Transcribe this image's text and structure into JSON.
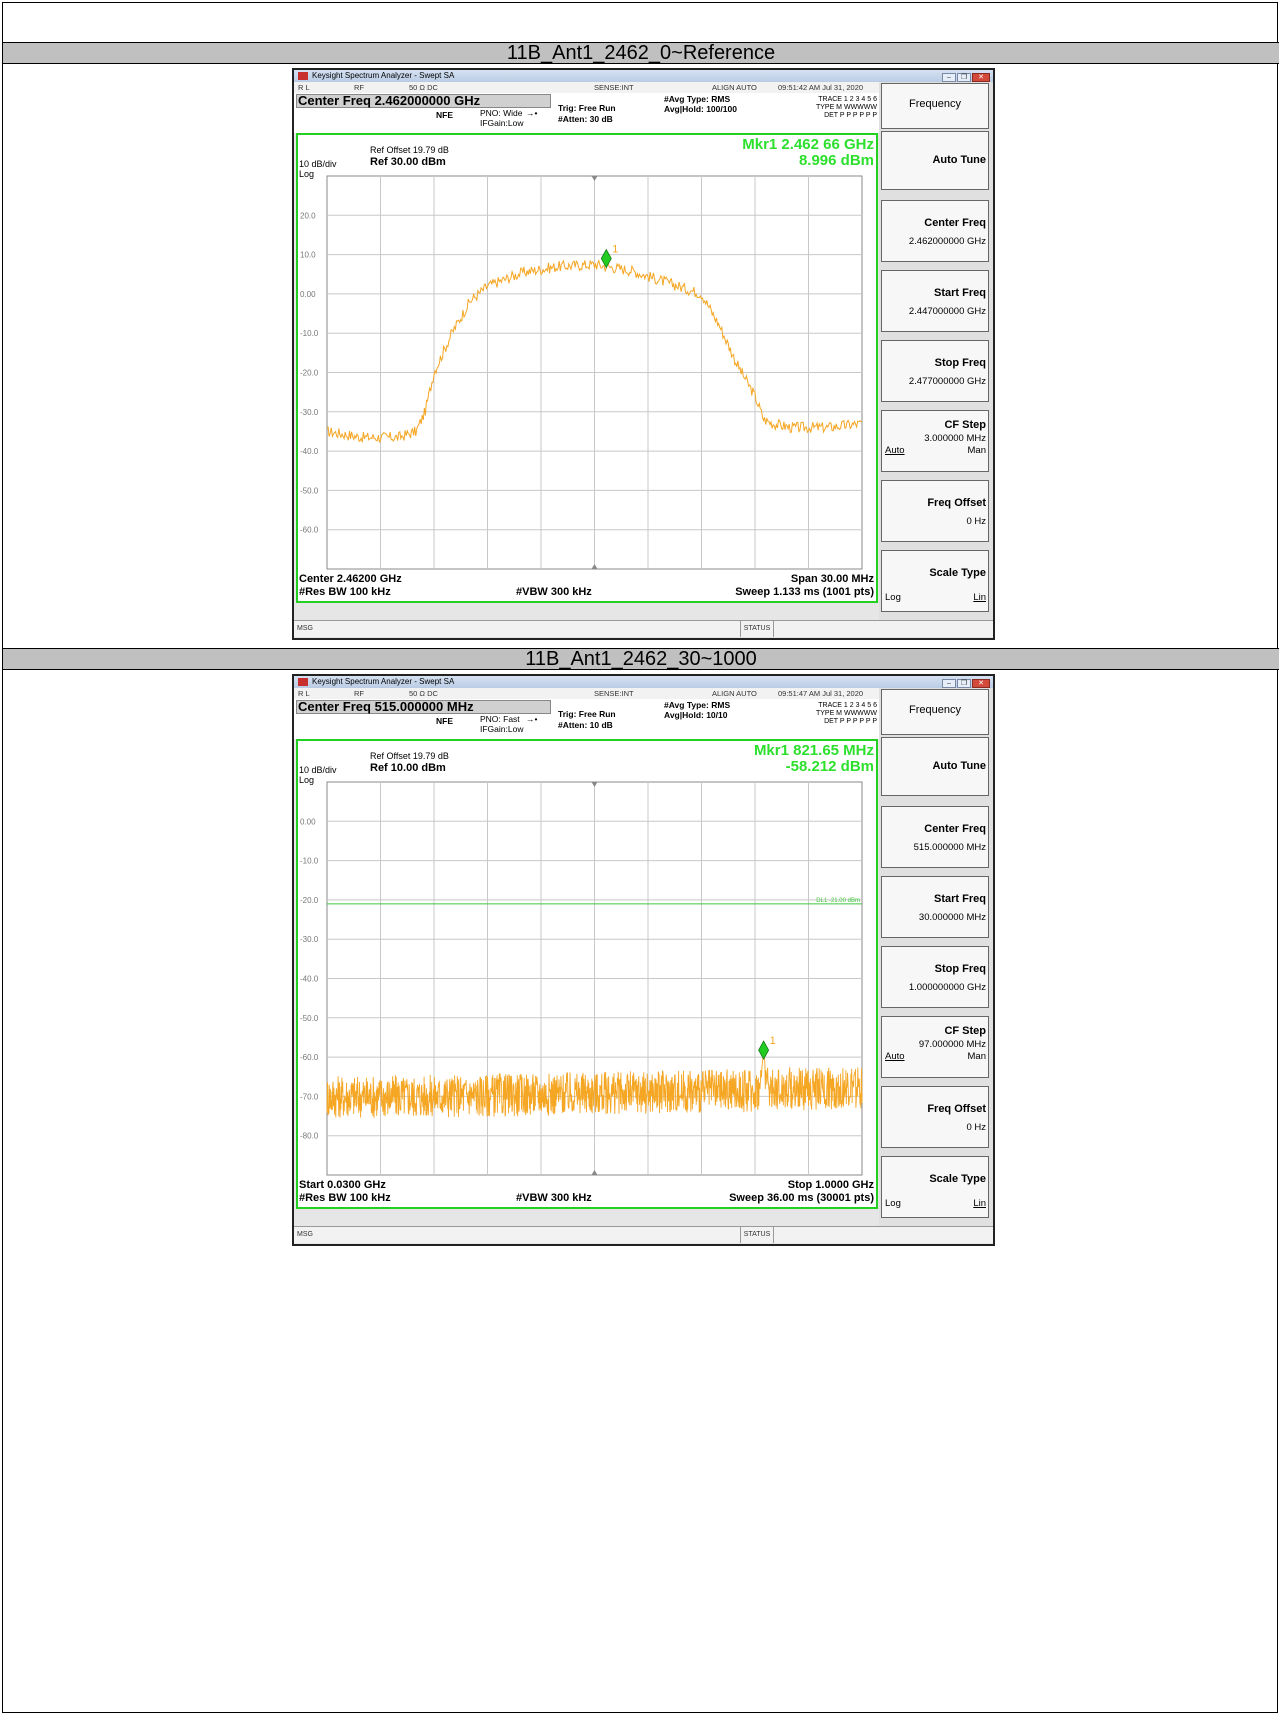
{
  "sections": [
    {
      "caption": "11B_Ant1_2462_0~Reference",
      "analyzer": {
        "window_title": "Keysight Spectrum Analyzer - Swept SA",
        "status_strip": {
          "rl": "R L",
          "rf": "RF",
          "impedance": "50 Ω  DC",
          "sense": "SENSE:INT",
          "align": "ALIGN AUTO",
          "timestamp": "09:51:42 AM Jul 31, 2020"
        },
        "center_freq_label": "Center Freq 2.462000000 GHz",
        "nfe": "NFE",
        "pno": "PNO: Wide",
        "ifgain": "IFGain:Low",
        "trig": "Trig: Free Run",
        "atten": "#Atten: 30 dB",
        "avg_type": "#Avg Type: RMS",
        "avg_hold": "Avg|Hold: 100/100",
        "trace_rows": [
          "TRACE 1 2 3 4 5 6",
          "TYPE M WWWWW",
          "DET P P P P P P"
        ],
        "ref_offset": "Ref Offset 19.79 dB",
        "scale": "10 dB/div",
        "ref_level": "Ref 30.00 dBm",
        "log": "Log",
        "marker_freq": "Mkr1 2.462 66 GHz",
        "marker_amp": "8.996 dBm",
        "marker_label": "1",
        "footer_left_1": "Center 2.46200 GHz",
        "footer_left_2": "#Res BW 100 kHz",
        "footer_mid": "#VBW 300 kHz",
        "footer_right_1": "Span 30.00 MHz",
        "footer_right_2": "Sweep  1.133 ms (1001 pts)",
        "msg": "MSG",
        "status": "STATUS",
        "softkeys": {
          "menu": "Frequency",
          "auto_tune": "Auto Tune",
          "center_title": "Center Freq",
          "center_value": "2.462000000 GHz",
          "start_title": "Start Freq",
          "start_value": "2.447000000 GHz",
          "stop_title": "Stop Freq",
          "stop_value": "2.477000000 GHz",
          "cfstep_title": "CF Step",
          "cfstep_value": "3.000000 MHz",
          "cfstep_auto": "Auto",
          "cfstep_man": "Man",
          "offset_title": "Freq Offset",
          "offset_value": "0 Hz",
          "scale_title": "Scale Type",
          "scale_log": "Log",
          "scale_lin": "Lin"
        }
      }
    },
    {
      "caption": "11B_Ant1_2462_30~1000",
      "analyzer": {
        "window_title": "Keysight Spectrum Analyzer - Swept SA",
        "status_strip": {
          "rl": "R L",
          "rf": "RF",
          "impedance": "50 Ω  DC",
          "sense": "SENSE:INT",
          "align": "ALIGN AUTO",
          "timestamp": "09:51:47 AM Jul 31, 2020"
        },
        "center_freq_label": "Center Freq 515.000000 MHz",
        "nfe": "NFE",
        "pno": "PNO: Fast",
        "ifgain": "IFGain:Low",
        "trig": "Trig: Free Run",
        "atten": "#Atten: 10 dB",
        "avg_type": "#Avg Type: RMS",
        "avg_hold": "Avg|Hold: 10/10",
        "trace_rows": [
          "TRACE 1 2 3 4 5 6",
          "TYPE M WWWWW",
          "DET P P P P P P"
        ],
        "ref_offset": "Ref Offset 19.79 dB",
        "scale": "10 dB/div",
        "ref_level": "Ref 10.00 dBm",
        "log": "Log",
        "marker_freq": "Mkr1 821.65 MHz",
        "marker_amp": "-58.212 dBm",
        "marker_label": "1",
        "display_line_label": "DL1 -21.00 dBm",
        "footer_left_1": "Start 0.0300 GHz",
        "footer_left_2": "#Res BW 100 kHz",
        "footer_mid": "#VBW 300 kHz",
        "footer_right_1": "Stop 1.0000 GHz",
        "footer_right_2": "Sweep  36.00 ms (30001 pts)",
        "msg": "MSG",
        "status": "STATUS",
        "softkeys": {
          "menu": "Frequency",
          "auto_tune": "Auto Tune",
          "center_title": "Center Freq",
          "center_value": "515.000000 MHz",
          "start_title": "Start Freq",
          "start_value": "30.000000 MHz",
          "stop_title": "Stop Freq",
          "stop_value": "1.000000000 GHz",
          "cfstep_title": "CF Step",
          "cfstep_value": "97.000000 MHz",
          "cfstep_auto": "Auto",
          "cfstep_man": "Man",
          "offset_title": "Freq Offset",
          "offset_value": "0 Hz",
          "scale_title": "Scale Type",
          "scale_log": "Log",
          "scale_lin": "Lin"
        }
      }
    }
  ],
  "chart_data": [
    {
      "type": "line",
      "title": "",
      "xlabel": "",
      "ylabel": "",
      "x_unit": "GHz",
      "y_unit": "dBm",
      "xlim": [
        2.447,
        2.477
      ],
      "ylim": [
        -70,
        30
      ],
      "y_ticks": [
        "20.0",
        "10.0",
        "0.00",
        "-10.0",
        "-20.0",
        "-30.0",
        "-40.0",
        "-50.0",
        "-60.0"
      ],
      "grid": true,
      "trace_color": "#f5a623",
      "marker": {
        "x": 2.46266,
        "y": 8.996,
        "label": "1",
        "color": "#22cc22"
      },
      "series": [
        {
          "x": [
            2.447,
            2.449,
            2.451,
            2.452,
            2.4525,
            2.453,
            2.454,
            2.455,
            2.456,
            2.458,
            2.46,
            2.462,
            2.464,
            2.466,
            2.468,
            2.469,
            2.47,
            2.471,
            2.4715,
            2.472,
            2.473,
            2.475,
            2.477
          ],
          "y": [
            -35,
            -36.5,
            -36.5,
            -35,
            -30,
            -20,
            -10,
            -2,
            2,
            5.5,
            7,
            7.5,
            6,
            3,
            0,
            -8,
            -18,
            -26,
            -32,
            -33,
            -34,
            -34,
            -33
          ]
        }
      ]
    },
    {
      "type": "line",
      "title": "",
      "xlabel": "",
      "ylabel": "",
      "x_unit": "GHz",
      "y_unit": "dBm",
      "xlim": [
        0.03,
        1.0
      ],
      "ylim": [
        -90,
        10
      ],
      "y_ticks": [
        "0.00",
        "-10.0",
        "-20.0",
        "-30.0",
        "-40.0",
        "-50.0",
        "-60.0",
        "-70.0",
        "-80.0"
      ],
      "grid": true,
      "trace_color": "#f5a623",
      "display_line": -21,
      "marker": {
        "x": 0.82165,
        "y": -58.212,
        "label": "1",
        "color": "#22cc22"
      },
      "series": [
        {
          "x": [
            0.03,
            0.2,
            0.4,
            0.6,
            0.8,
            0.815,
            0.8217,
            0.828,
            0.85,
            1.0
          ],
          "y": [
            -70,
            -70,
            -69.5,
            -69,
            -68.5,
            -68,
            -58.2,
            -68,
            -68,
            -68
          ]
        }
      ]
    }
  ]
}
